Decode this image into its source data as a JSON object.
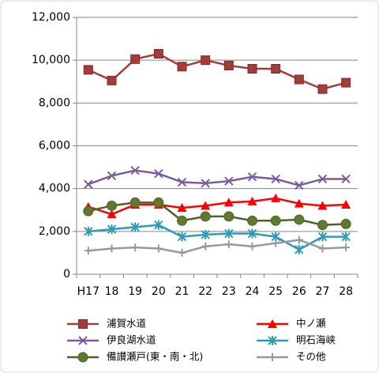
{
  "chart_data": {
    "type": "line",
    "categories": [
      "H17",
      "18",
      "19",
      "20",
      "21",
      "22",
      "23",
      "24",
      "25",
      "26",
      "27",
      "28"
    ],
    "series": [
      {
        "name": "浦賀水道",
        "color": "#a33d3a",
        "marker": "square",
        "values": [
          9550,
          9050,
          10050,
          10300,
          9700,
          10000,
          9750,
          9600,
          9600,
          9100,
          8650,
          8950
        ]
      },
      {
        "name": "中ノ瀬",
        "color": "#ff0000",
        "marker": "triangle",
        "values": [
          3150,
          2800,
          3250,
          3250,
          3100,
          3200,
          3350,
          3400,
          3550,
          3300,
          3200,
          3250
        ]
      },
      {
        "name": "伊良湖水道",
        "color": "#7a5c9e",
        "marker": "x",
        "values": [
          4200,
          4600,
          4850,
          4700,
          4300,
          4250,
          4350,
          4550,
          4450,
          4150,
          4450,
          4450
        ]
      },
      {
        "name": "明石海峡",
        "color": "#2e9bb5",
        "marker": "star",
        "values": [
          2000,
          2100,
          2200,
          2300,
          1750,
          1850,
          1900,
          1900,
          1750,
          1150,
          1750,
          1750
        ]
      },
      {
        "name": "備讃瀬戸(東・南・北)",
        "color": "#4f6228",
        "marker": "circle",
        "values": [
          2950,
          3200,
          3350,
          3350,
          2500,
          2700,
          2700,
          2500,
          2500,
          2550,
          2300,
          2350
        ]
      },
      {
        "name": "その他",
        "color": "#999999",
        "marker": "plus",
        "values": [
          1100,
          1200,
          1250,
          1200,
          1000,
          1300,
          1400,
          1300,
          1450,
          1600,
          1200,
          1250
        ]
      }
    ],
    "ylim": [
      0,
      12000
    ],
    "yticks": [
      0,
      {
        "value": 2000,
        "label": "2,000"
      },
      {
        "value": 4000,
        "label": "4,000"
      },
      {
        "value": 6000,
        "label": "6,000"
      },
      {
        "value": 8000,
        "label": "8,000"
      },
      {
        "value": 10000,
        "label": "10,000"
      },
      {
        "value": 12000,
        "label": "12,000"
      }
    ],
    "grid": true,
    "legend": "bottom"
  }
}
